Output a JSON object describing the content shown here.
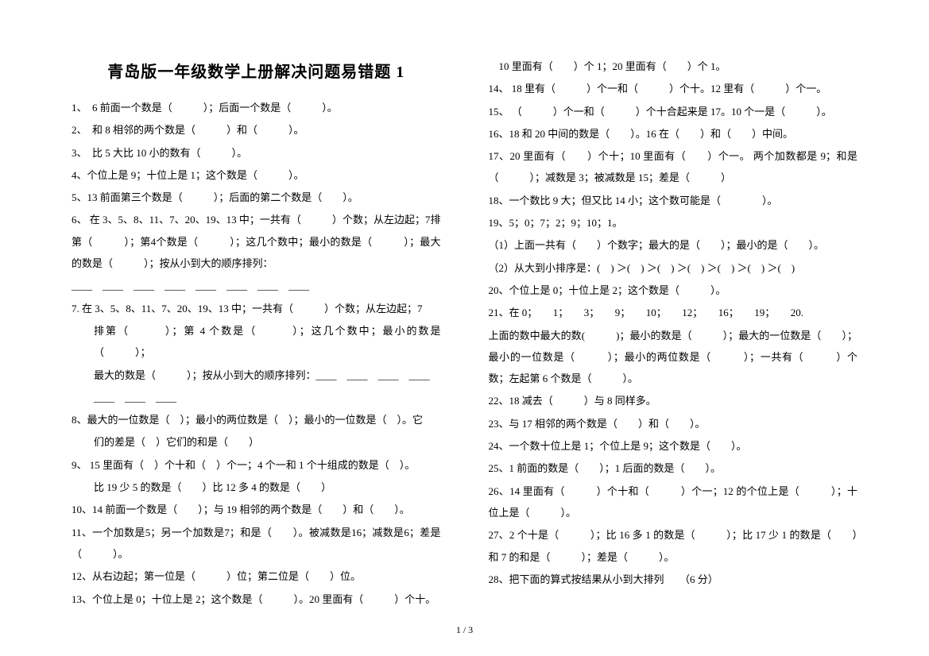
{
  "title": "青岛版一年级数学上册解决问题易错题 1",
  "pageNumber": "1 / 3",
  "leftColumn": {
    "q1": "1、　6 前面一个数是（　　　）；后面一个数是（　　　）。",
    "q2": "2、　和 8 相邻的两个数是（　　　）和（　　　）。",
    "q3": "3、　比 5 大比 10 小的数有（　　　）。",
    "q4": "4、个位上是 9；十位上是 1；这个数是（　　　）。",
    "q5": "5、13 前面第三个数是（　　　）；后面的第二个数是（　　）。",
    "q6": "6、 在 3、5、8、11、7、20、19、13 中；一共有（　　　）个数；从左边起；7排第（　　　）；第4个数是（　　　）；这几个数中；最小的数是（　　　）；最大的数是（　　　）；按从小到大的顺序排列：",
    "q6blanks": "____　____　____　____　____　____　____　____",
    "q7": "7. 在 3、5、8、11、7、20、19、13 中；一共有（　　　）个数；从左边起；7",
    "q7line2": "排第（　　　）；第 4 个数是（　　　）；这几个数中；最小的数是（　　　）；",
    "q7line3": "最大的数是（　　　）；按从小到大的顺序排列：____　____　____　____",
    "q7line4": "____　____　____",
    "q8": "8、最大的一位数是（　）；最小的两位数是（　）；最小的一位数是（　）。它",
    "q8line2": "们的差是（　）它们的和是（　　）",
    "q9": "9、 15 里面有（　）个十和（　）个一；4 个一和 1 个十组成的数是（　）。",
    "q9line2": "比 19 少 5 的数是（　　）比 12 多 4 的数是（　　）",
    "q10": "10、14 前面一个数是（　　）；与 19 相邻的两个数是（　　）和（　　）。",
    "q11": "11、一个加数是5；另一个加数是7；和是（　　）。被减数是16；减数是6；差是（　　　）。",
    "q12": "12、从右边起；第一位是（　　　）位；第二位是（　　）位。",
    "q13": "13、个位上是 0；十位上是 2；这个数是（　　　）。20 里面有（　　　）个十。"
  },
  "rightColumn": {
    "r1": "　10 里面有（　　）个 1；20 里面有（　　）个 1。",
    "r2": "14、 18 里有（　　　）个一和（　　　）个十。12 里有（　　　）个一。",
    "r3": "15、 （　　　）个一和（　　　）个十合起来是 17。10 个一是（　　　）。",
    "r4": "16、18 和 20 中间的数是（　　）。16 在（　　）和（　　）中间。",
    "r5": "17、20 里面有（　　）个十；10 里面有（　　）个一。 两个加数都是 9；和是（　　　）；减数是 3；被减数是 15；差是（　　　）",
    "r6": "18、一个数比 9 大；但又比 14 小；这个数可能是（　　　　）。",
    "r7": "19、5；0；7；2；9；10；1。",
    "r8": "（1）上面一共有（　　）个数字；最大的是（　　）；最小的是（　　）。",
    "r9": "（2）从大到小排序是：(　) ＞(　) ＞(　) ＞(　) ＞(　) ＞(　) ＞(　)",
    "r10": "20、个位上是 0；十位上是 2；这个数是（　　　）。",
    "r11": "21、在 0；　　1；　　3；　　9；　　10；　　12；　　16；　　19；　　20.",
    "r12": "上面的数中最大的数(　　　)；最小的数是（　　　）；最大的一位数是（　　）；最小的一位数是（　　　）；最小的两位数是（　　　）；一共有（　　　）个数；左起第 6 个数是（　　　）。",
    "r13": "22、18 减去（　　　）与 8 同样多。",
    "r14": "23、与 17 相邻的两个数是（　　）和（　　）。",
    "r15": "24、一个数十位上是 1；个位上是 9；这个数是（　　）。",
    "r16": "25、1 前面的数是（　　）；1 后面的数是（　　）。",
    "r17": "26、14 里面有（　　　）个十和（　　　）个一；12 的个位上是（　　　）；十位上是（　　　）。",
    "r18": "27、2 个十是（　　　）；比 16 多 1 的数是（　　　）；比 17 少 1 的数是（　　）和 7 的和是（　　　）；差是（　　　）。",
    "r19": "28、把下面的算式按结果从小到大排列　　（6 分）"
  }
}
